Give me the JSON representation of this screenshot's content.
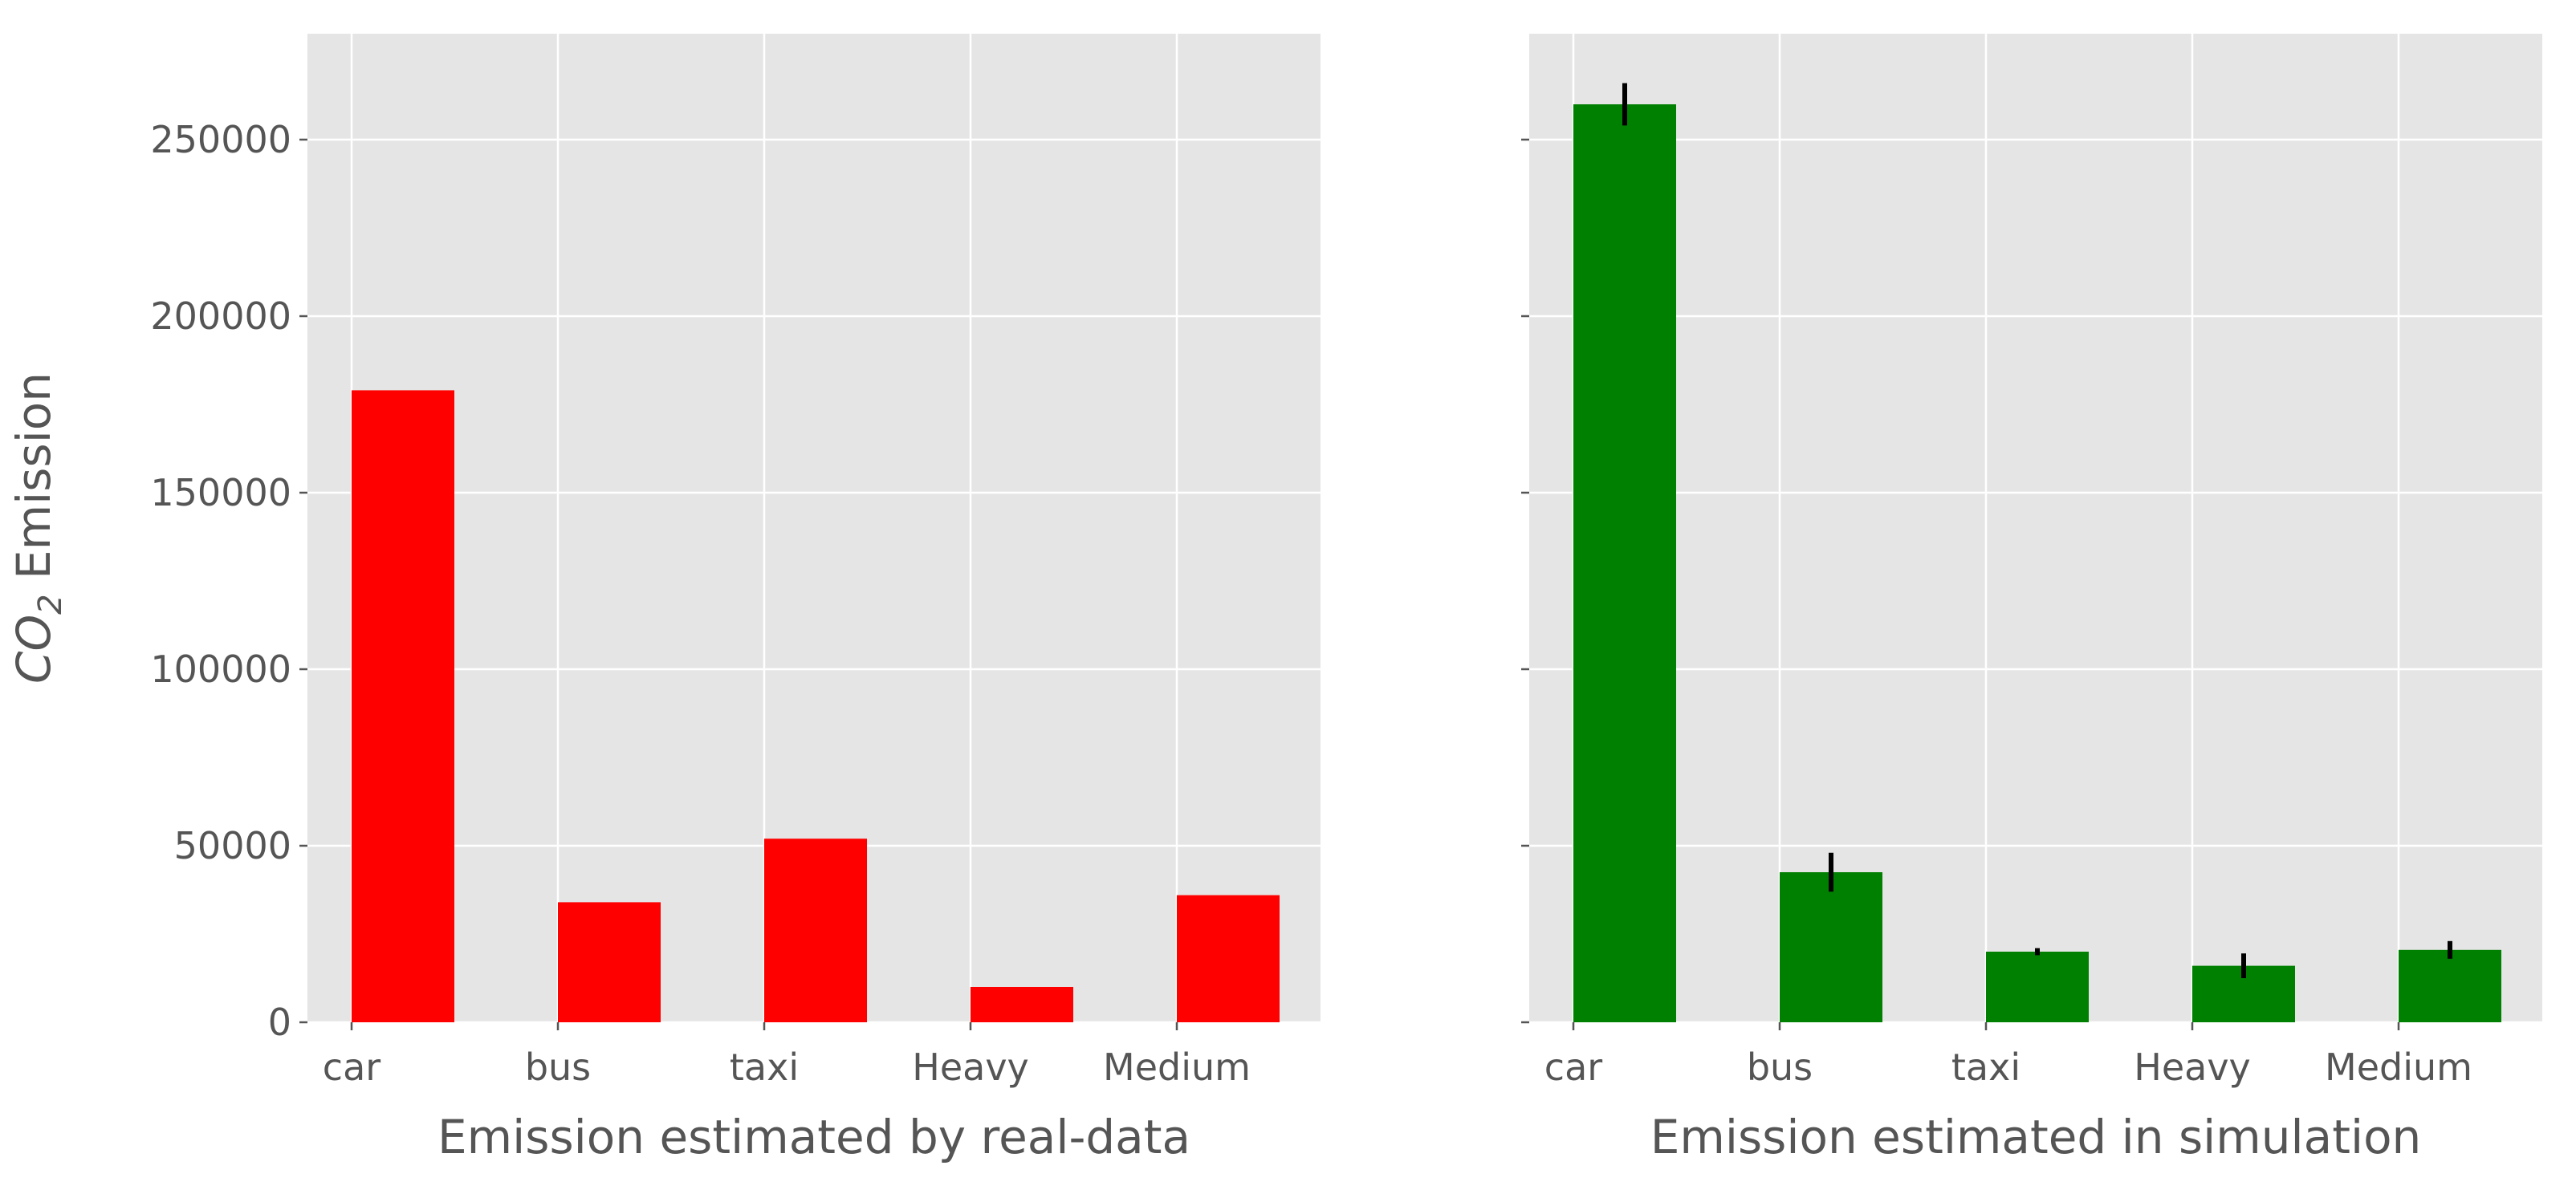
{
  "chart_data": [
    {
      "type": "bar",
      "xlabel": "Emission estimated by real-data",
      "ylabel_parts": {
        "base": "CO",
        "sub": "2",
        "rest": " Emission"
      },
      "categories": [
        "car",
        "bus",
        "taxi",
        "Heavy",
        "Medium"
      ],
      "values": [
        179000,
        34000,
        52000,
        10000,
        36000
      ],
      "color": "#ff0000",
      "ylim": [
        0,
        280000
      ],
      "yticks": [
        0,
        50000,
        100000,
        150000,
        200000,
        250000
      ],
      "grid": true
    },
    {
      "type": "bar",
      "xlabel": "Emission estimated in simulation",
      "categories": [
        "car",
        "bus",
        "taxi",
        "Heavy",
        "Medium"
      ],
      "values": [
        260000,
        42500,
        20000,
        16000,
        20500
      ],
      "errors": [
        6000,
        5500,
        1000,
        3500,
        2500
      ],
      "color": "#008000",
      "ylim": [
        0,
        280000
      ],
      "yticks": [
        0,
        50000,
        100000,
        150000,
        200000,
        250000
      ],
      "yticklabels_visible": false,
      "grid": true
    }
  ]
}
